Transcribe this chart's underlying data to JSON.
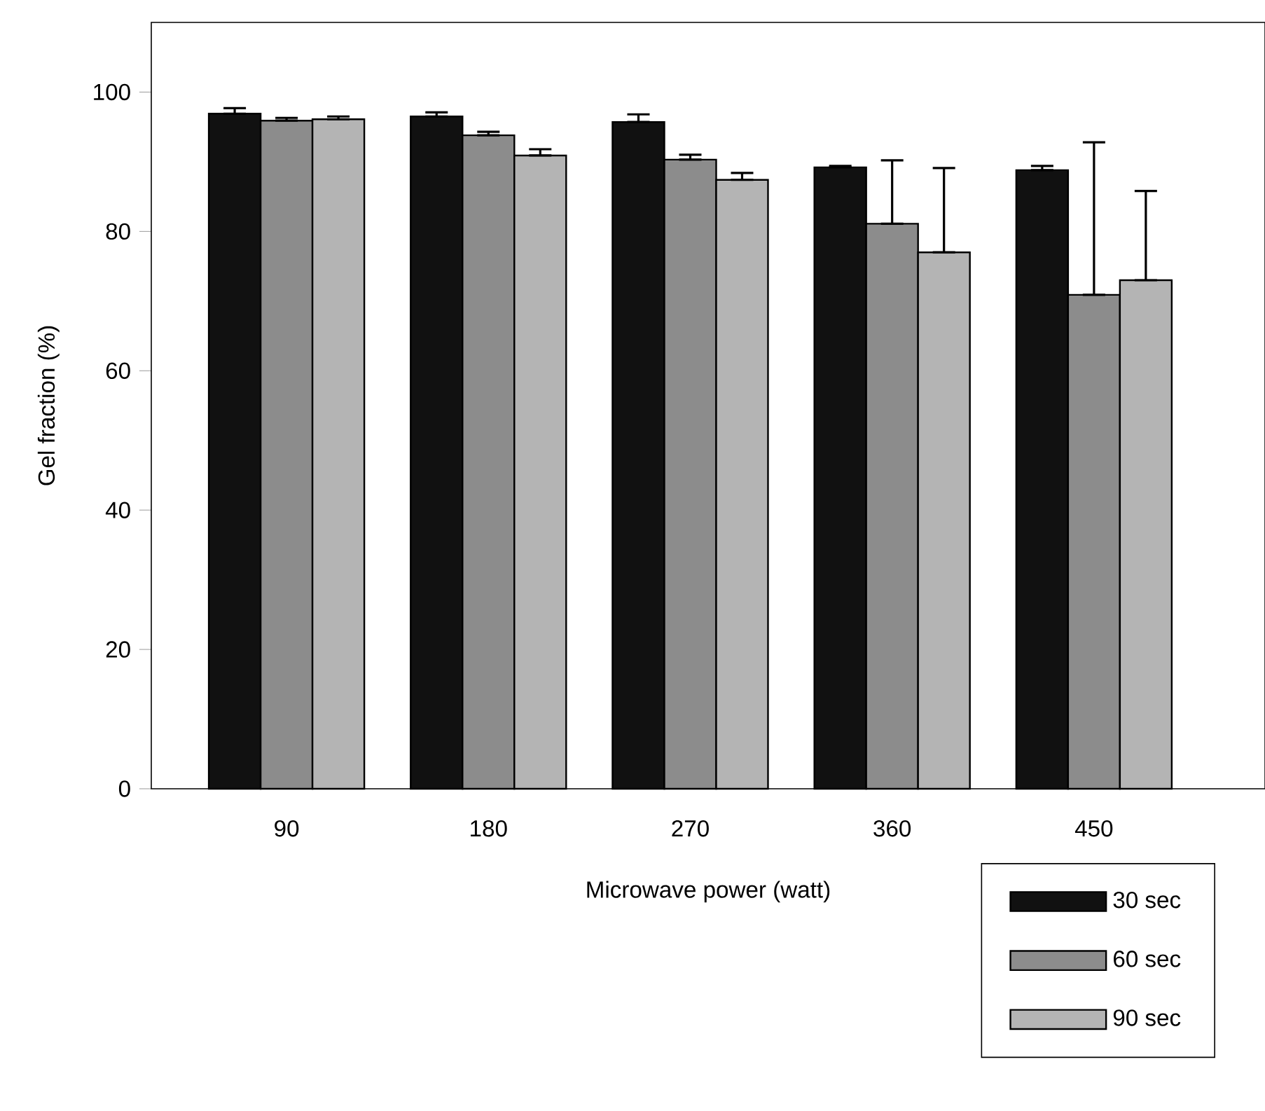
{
  "chart_data": {
    "type": "bar",
    "xlabel": "Microwave power (watt)",
    "ylabel": "Gel fraction (%)",
    "categories": [
      "90",
      "180",
      "270",
      "360",
      "450"
    ],
    "series": [
      {
        "name": "30 sec",
        "color": "#111111",
        "values": [
          96.9,
          96.5,
          95.7,
          89.2,
          88.8
        ],
        "errors": [
          [
            96.9,
            97.7
          ],
          [
            96.5,
            97.1
          ],
          [
            95.7,
            96.8
          ],
          [
            89.2,
            89.4
          ],
          [
            88.8,
            89.4
          ]
        ]
      },
      {
        "name": "60 sec",
        "color": "#8c8c8c",
        "values": [
          95.9,
          93.8,
          90.3,
          81.1,
          70.9
        ],
        "errors": [
          [
            95.9,
            96.3
          ],
          [
            93.8,
            94.3
          ],
          [
            90.3,
            91.0
          ],
          [
            81.1,
            90.2
          ],
          [
            70.9,
            92.8
          ]
        ]
      },
      {
        "name": "90 sec",
        "color": "#b4b4b4",
        "values": [
          96.1,
          90.9,
          87.4,
          77.0,
          73.0
        ],
        "errors": [
          [
            96.1,
            96.5
          ],
          [
            90.9,
            91.8
          ],
          [
            87.4,
            88.4
          ],
          [
            77.0,
            89.1
          ],
          [
            73.0,
            85.8
          ]
        ]
      }
    ],
    "ylim": [
      0,
      110
    ],
    "yticks": [
      0,
      20,
      40,
      60,
      80,
      100
    ],
    "legend": "bottom right"
  }
}
